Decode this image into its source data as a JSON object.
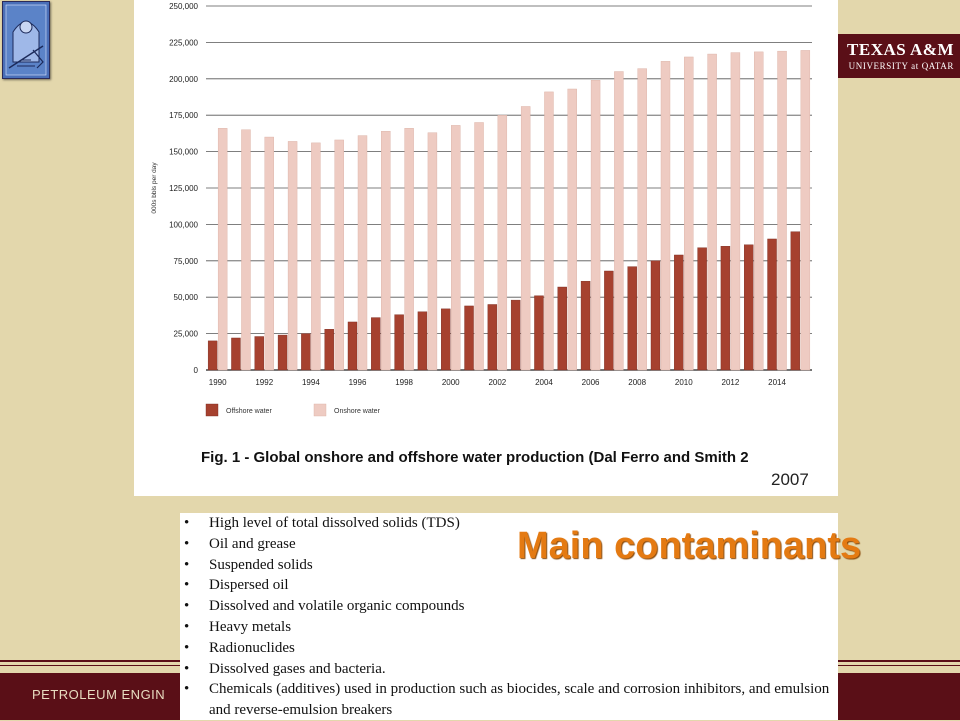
{
  "header": {
    "tamu_line1": "TEXAS A&M",
    "tamu_line2": "UNIVERSITY at QATAR",
    "logo_icon": "seal-icon"
  },
  "chart_data": {
    "type": "bar",
    "title": "Fig. 1 - Global onshore and offshore water production (Dal Ferro and Smith 2",
    "source_year": "2007",
    "xlabel": "",
    "ylabel": "000s bbls per day",
    "ylim": [
      0,
      250000
    ],
    "y_ticks": [
      "0",
      "25,000",
      "50,000",
      "75,000",
      "100,000",
      "125,000",
      "150,000",
      "175,000",
      "200,000",
      "225,000",
      "250,000"
    ],
    "x_tick_labels": [
      "1990",
      "1992",
      "1994",
      "1996",
      "1998",
      "2000",
      "2002",
      "2004",
      "2006",
      "2008",
      "2010",
      "2012",
      "2014"
    ],
    "categories": [
      "1990",
      "1991",
      "1992",
      "1993",
      "1994",
      "1995",
      "1996",
      "1997",
      "1998",
      "1999",
      "2000",
      "2001",
      "2002",
      "2003",
      "2004",
      "2005",
      "2006",
      "2007",
      "2008",
      "2009",
      "2010",
      "2011",
      "2012",
      "2013",
      "2014",
      "2015"
    ],
    "legend_position": "bottom-left",
    "series": [
      {
        "name": "Offshore water",
        "color": "#a6412f",
        "values": [
          20000,
          22000,
          23000,
          24000,
          25000,
          28000,
          33000,
          36000,
          38000,
          40000,
          42000,
          44000,
          45000,
          48000,
          51000,
          57000,
          61000,
          68000,
          71000,
          75000,
          79000,
          84000,
          85000,
          86000,
          90000,
          95000
        ]
      },
      {
        "name": "Onshore water",
        "color": "#eecbc2",
        "values": [
          166000,
          165000,
          160000,
          157000,
          156000,
          158000,
          161000,
          164000,
          166000,
          163000,
          168000,
          170000,
          175000,
          181000,
          191000,
          193000,
          199000,
          205000,
          207000,
          212000,
          215000,
          217000,
          218000,
          218500,
          219000,
          219500
        ]
      }
    ]
  },
  "contaminants": {
    "heading": "Main contaminants",
    "items": [
      "High level of total dissolved solids (TDS)",
      "Oil and grease",
      "Suspended solids",
      "Dispersed oil",
      "Dissolved and volatile organic compounds",
      "Heavy metals",
      "Radionuclides",
      "Dissolved gases and bacteria.",
      "Chemicals (additives) used in production such as biocides, scale and corrosion inhibitors, and emulsion and reverse-emulsion breakers"
    ]
  },
  "footer": {
    "text": "PETROLEUM ENGIN"
  }
}
